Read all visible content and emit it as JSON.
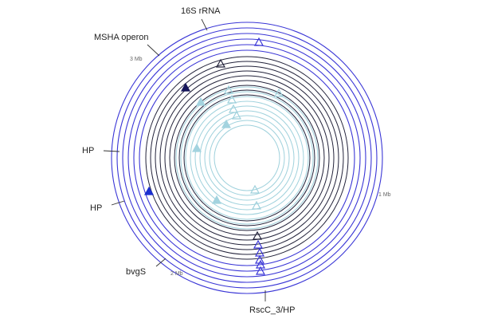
{
  "colors": {
    "outer_ring": "#3a36d6",
    "middle_ring": "#22223a",
    "inner_ring": "#9fd1dc",
    "marker_outer_filled": "#1a2fd0",
    "marker_middle_filled": "#14145a",
    "marker_inner_filled": "#a3d3df"
  },
  "annotations": [
    {
      "id": "16s-rrna",
      "text": "16S rRNA"
    },
    {
      "id": "msha-operon",
      "text": "MSHA operon"
    },
    {
      "id": "hp-upper",
      "text": "HP"
    },
    {
      "id": "hp-lower",
      "text": "HP"
    },
    {
      "id": "bvgs",
      "text": "bvgS"
    },
    {
      "id": "rscc3-hp",
      "text": "RscC_3/HP"
    }
  ],
  "scale_labels": {
    "mb3": "3 Mb",
    "mb1": "1 Mb",
    "mb2": "2 Mb"
  },
  "ring_groups": [
    {
      "name": "outer",
      "count": 6
    },
    {
      "name": "middle",
      "count": 9
    },
    {
      "name": "inner",
      "count": 9
    }
  ],
  "markers": {
    "outer_open": 6,
    "outer_filled": 1,
    "middle_open": 3,
    "middle_filled": 1,
    "inner_open": 6,
    "inner_filled": 4
  }
}
